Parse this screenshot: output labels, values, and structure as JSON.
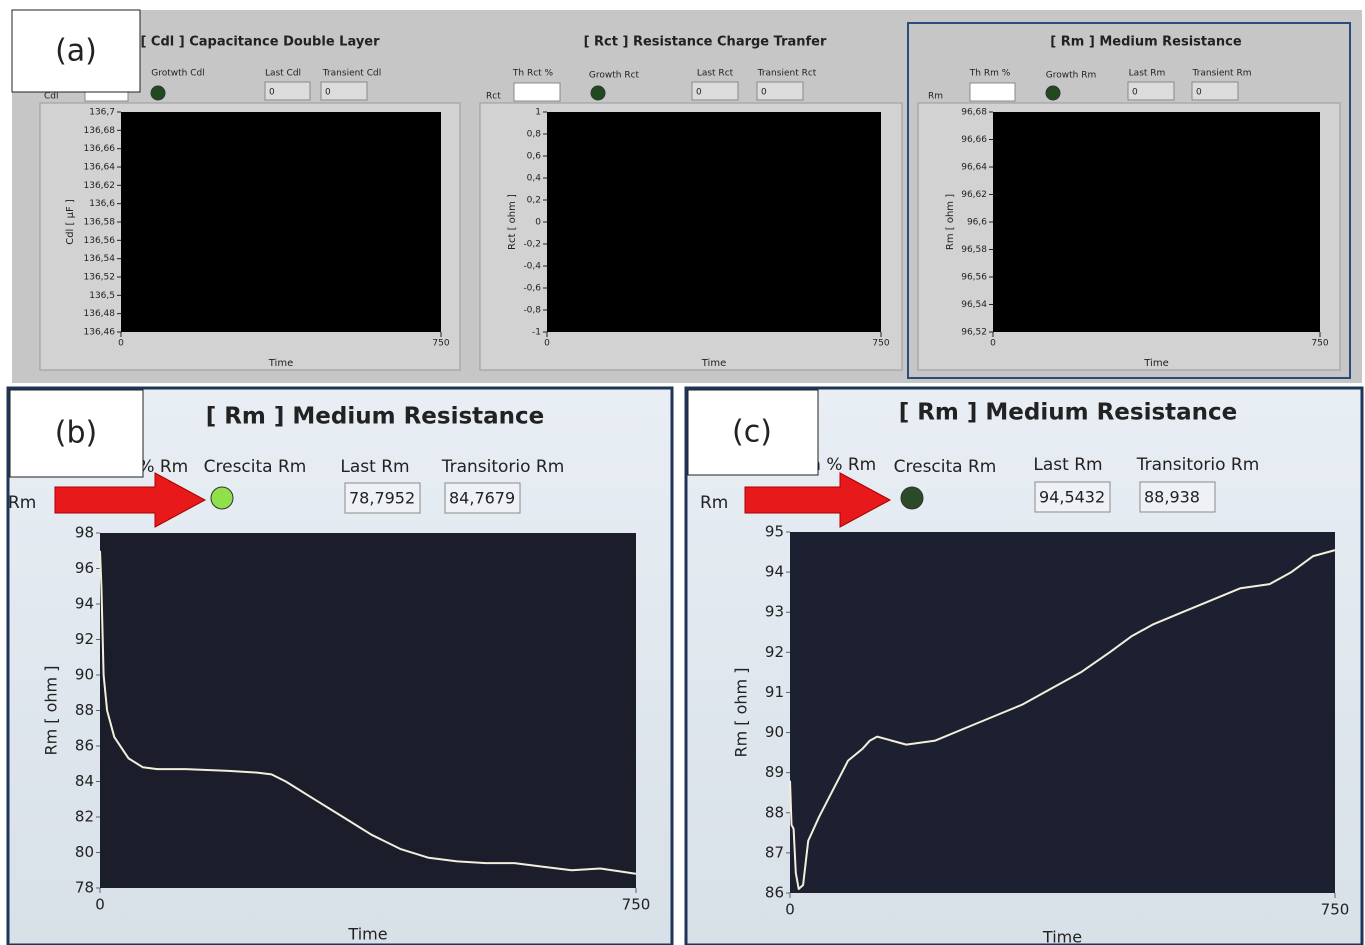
{
  "panel_a": {
    "label": "(a)",
    "sections": [
      {
        "title": "[ Cdl ] Capacitance Double Layer",
        "side_label": "Cdl",
        "growth_label": "Grotwth Cdl",
        "led_color": "#1f4a1f",
        "last_label": "Last Cdl",
        "last_value": "0",
        "transient_label": "Transient Cdl",
        "transient_value": "0",
        "graph": {
          "y_label": "Cdl [ µF ]",
          "x_label": "Time",
          "xlim": [
            0,
            750
          ],
          "xticks": [
            0,
            750
          ],
          "ylim": [
            136.46,
            136.7
          ],
          "yticks": [
            {
              "value": 136.7,
              "label": "136,7"
            },
            {
              "value": 136.68,
              "label": "136,68"
            },
            {
              "value": 136.66,
              "label": "136,66"
            },
            {
              "value": 136.64,
              "label": "136,64"
            },
            {
              "value": 136.62,
              "label": "136,62"
            },
            {
              "value": 136.6,
              "label": "136,6"
            },
            {
              "value": 136.58,
              "label": "136,58"
            },
            {
              "value": 136.56,
              "label": "136,56"
            },
            {
              "value": 136.54,
              "label": "136,54"
            },
            {
              "value": 136.52,
              "label": "136,52"
            },
            {
              "value": 136.5,
              "label": "136,5"
            },
            {
              "value": 136.48,
              "label": "136,48"
            },
            {
              "value": 136.46,
              "label": "136,46"
            }
          ]
        }
      },
      {
        "title": "[ Rct ] Resistance Charge Tranfer",
        "side_label": "Rct",
        "threshold_label": "Th Rct %",
        "growth_label": "Growth Rct",
        "led_color": "#1f4a1f",
        "last_label": "Last Rct",
        "last_value": "0",
        "transient_label": "Transient Rct",
        "transient_value": "0",
        "graph": {
          "y_label": "Rct [ ohm ]",
          "x_label": "Time",
          "xlim": [
            0,
            750
          ],
          "xticks": [
            0,
            750
          ],
          "ylim": [
            -1,
            1
          ],
          "yticks": [
            1,
            {
              "value": 0.8,
              "label": "0,8"
            },
            {
              "value": 0.6,
              "label": "0,6"
            },
            {
              "value": 0.4,
              "label": "0,4"
            },
            {
              "value": 0.2,
              "label": "0,2"
            },
            0,
            {
              "value": -0.2,
              "label": "-0,2"
            },
            {
              "value": -0.4,
              "label": "-0,4"
            },
            {
              "value": -0.6,
              "label": "-0,6"
            },
            {
              "value": -0.8,
              "label": "-0,8"
            },
            -1
          ]
        }
      },
      {
        "title": "[ Rm ] Medium Resistance",
        "side_label": "Rm",
        "threshold_label": "Th Rm %",
        "growth_label": "Growth Rm",
        "led_color": "#1f4a1f",
        "last_label": "Last Rm",
        "last_value": "0",
        "transient_label": "Transient Rm",
        "transient_value": "0",
        "graph": {
          "y_label": "Rm [ ohm ]",
          "x_label": "Time",
          "xlim": [
            0,
            750
          ],
          "xticks": [
            0,
            750
          ],
          "ylim": [
            96.52,
            96.68
          ],
          "yticks": [
            {
              "value": 96.68,
              "label": "96,68"
            },
            {
              "value": 96.66,
              "label": "96,66"
            },
            {
              "value": 96.64,
              "label": "96,64"
            },
            {
              "value": 96.62,
              "label": "96,62"
            },
            {
              "value": 96.6,
              "label": "96,6"
            },
            {
              "value": 96.58,
              "label": "96,58"
            },
            {
              "value": 96.56,
              "label": "96,56"
            },
            {
              "value": 96.54,
              "label": "96,54"
            },
            {
              "value": 96.52,
              "label": "96,52"
            }
          ]
        }
      }
    ]
  },
  "panel_b": {
    "label": "(b)",
    "section": {
      "title": "[ Rm ] Medium Resistance",
      "side_label": "Rm",
      "threshold_label": "Th % Rm",
      "growth_label": "Crescita Rm",
      "led_color": "#8fe04a",
      "last_label": "Last Rm",
      "last_value": "78,7952",
      "transient_label": "Transitorio Rm",
      "transient_value": "84,7679",
      "graph": {
        "y_label": "Rm [ ohm ]",
        "x_label": "Time",
        "xlim": [
          0,
          750
        ],
        "xticks": [
          0,
          750
        ],
        "ylim": [
          78,
          98
        ],
        "yticks": [
          78,
          80,
          82,
          84,
          86,
          88,
          90,
          92,
          94,
          96,
          98
        ],
        "line_color": "#f2f0dc",
        "x": [
          0,
          2,
          5,
          10,
          20,
          40,
          60,
          80,
          120,
          180,
          220,
          240,
          260,
          300,
          340,
          380,
          420,
          460,
          500,
          540,
          580,
          620,
          660,
          700,
          750
        ],
        "values": [
          97,
          95,
          90,
          88,
          86.5,
          85.3,
          84.8,
          84.7,
          84.7,
          84.6,
          84.5,
          84.4,
          84,
          83,
          82,
          81,
          80.2,
          79.7,
          79.5,
          79.4,
          79.4,
          79.2,
          79,
          79.1,
          78.8
        ]
      }
    }
  },
  "panel_c": {
    "label": "(c)",
    "section": {
      "title": "[ Rm ] Medium Resistance",
      "side_label": "Rm",
      "threshold_label": "Th % Rm",
      "growth_label": "Crescita Rm",
      "led_color": "#2a4a2a",
      "last_label": "Last Rm",
      "last_value": "94,5432",
      "transient_label": "Transitorio Rm",
      "transient_value": "88,938",
      "graph": {
        "y_label": "Rm [ ohm ]",
        "x_label": "Time",
        "xlim": [
          0,
          750
        ],
        "xticks": [
          0,
          750
        ],
        "ylim": [
          86,
          95
        ],
        "yticks": [
          86,
          87,
          88,
          89,
          90,
          91,
          92,
          93,
          94,
          95
        ],
        "line_color": "#f2f0dc",
        "x": [
          0,
          2,
          5,
          8,
          12,
          18,
          25,
          40,
          60,
          80,
          100,
          110,
          120,
          140,
          160,
          200,
          240,
          280,
          320,
          360,
          400,
          440,
          470,
          500,
          540,
          580,
          620,
          660,
          690,
          720,
          750
        ],
        "values": [
          88.8,
          87.7,
          87.6,
          86.5,
          86.1,
          86.2,
          87.3,
          87.9,
          88.6,
          89.3,
          89.6,
          89.8,
          89.9,
          89.8,
          89.7,
          89.8,
          90.1,
          90.4,
          90.7,
          91.1,
          91.5,
          92,
          92.4,
          92.7,
          93,
          93.3,
          93.6,
          93.7,
          94,
          94.4,
          94.55
        ]
      }
    }
  }
}
